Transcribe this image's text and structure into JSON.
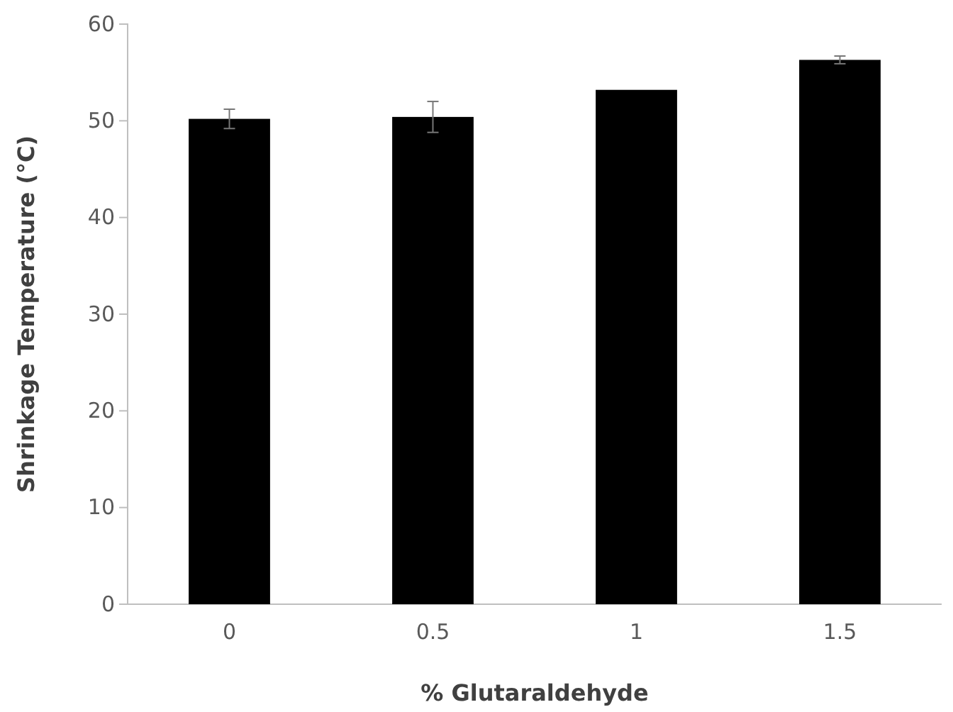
{
  "chart_data": {
    "type": "bar",
    "xlabel": "% Glutaraldehyde",
    "ylabel": "Shrinkage Temperature (°C)",
    "categories": [
      "0",
      "0.5",
      "1",
      "1.5"
    ],
    "values": [
      50.2,
      50.4,
      53.2,
      56.3
    ],
    "errors": [
      1.0,
      1.6,
      null,
      0.4
    ],
    "color": "#000000",
    "ylim": [
      0,
      60
    ],
    "yticks": [
      0,
      10,
      20,
      30,
      40,
      50,
      60
    ],
    "grid": false
  }
}
